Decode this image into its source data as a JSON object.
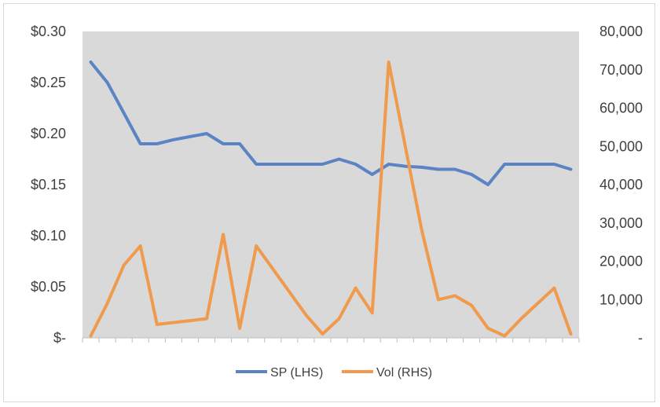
{
  "chart_data": {
    "type": "line",
    "title": "",
    "xlabel": "",
    "ylabel": "",
    "grid": false,
    "plot_background": "#d9d9d9",
    "legend_position": "bottom",
    "left_axis": {
      "ylim": [
        0,
        0.3
      ],
      "ticks": [
        0,
        0.05,
        0.1,
        0.15,
        0.2,
        0.25,
        0.3
      ],
      "tick_labels": [
        "$-",
        "$0.05",
        "$0.10",
        "$0.15",
        "$0.20",
        "$0.25",
        "$0.30"
      ]
    },
    "right_axis": {
      "ylim": [
        0,
        80000
      ],
      "ticks": [
        0,
        10000,
        20000,
        30000,
        40000,
        50000,
        60000,
        70000,
        80000
      ],
      "tick_labels": [
        "-",
        "10,000",
        "20,000",
        "30,000",
        "40,000",
        "50,000",
        "60,000",
        "70,000",
        "80,000"
      ]
    },
    "x_count": 30,
    "series": [
      {
        "name": "SP (LHS)",
        "axis": "left",
        "color": "#5b84c4",
        "values": [
          0.27,
          0.25,
          0.22,
          0.19,
          0.19,
          0.194,
          0.197,
          0.2,
          0.19,
          0.19,
          0.17,
          0.17,
          0.17,
          0.17,
          0.17,
          0.175,
          0.17,
          0.16,
          0.17,
          0.168,
          0.167,
          0.165,
          0.165,
          0.16,
          0.15,
          0.17,
          0.17,
          0.17,
          0.17,
          0.165
        ]
      },
      {
        "name": "Vol (RHS)",
        "axis": "right",
        "color": "#ef9a4d",
        "values": [
          500,
          9000,
          19000,
          24000,
          3500,
          4000,
          4500,
          5000,
          27000,
          2500,
          24000,
          18000,
          12000,
          6000,
          1000,
          5000,
          13000,
          6500,
          72000,
          50000,
          28000,
          10000,
          11000,
          8500,
          2500,
          500,
          5000,
          9000,
          13000,
          1000
        ]
      }
    ]
  }
}
